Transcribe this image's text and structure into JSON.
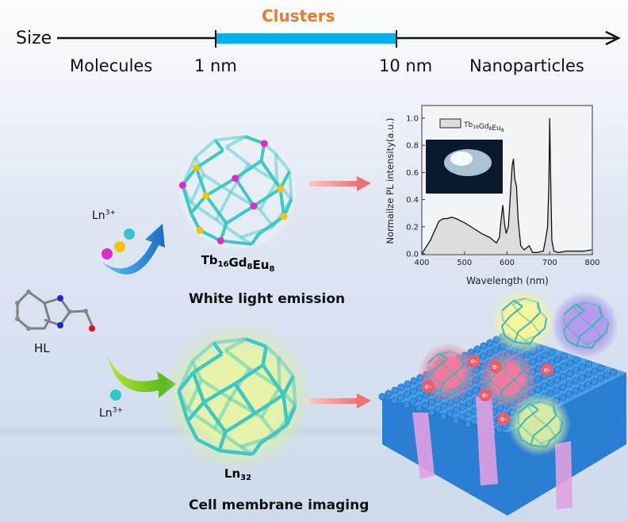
{
  "size_scale": {
    "axis_label": "Size",
    "highlight_label": "Clusters",
    "highlight_color": "#00b0ec",
    "categories": [
      "Molecules",
      "1 nm",
      "10 nm",
      "Nanoparticles"
    ]
  },
  "top_path": {
    "ion_label": "Ln3+",
    "ion_colors": [
      "#e02ad0",
      "#f5c400",
      "#30c8c8"
    ],
    "cluster_label": "Tb16Gd8Eu8",
    "application": "White light emission"
  },
  "ligand": {
    "label": "HL"
  },
  "bottom_path": {
    "ion_label": "Ln3+",
    "cluster_label": "Ln32",
    "application": "Cell membrane imaging",
    "electron_label": "e-"
  },
  "chart_data": {
    "type": "area",
    "xlabel": "Wavelength (nm)",
    "ylabel": "Normailze PL intensity(a.u.)",
    "xlim": [
      400,
      800
    ],
    "ylim": [
      0,
      1.05
    ],
    "xticks": [
      400,
      500,
      600,
      700,
      800
    ],
    "yticks": [
      "0.0",
      "0.2",
      "0.4",
      "0.6",
      "0.8",
      "1.0"
    ],
    "legend": "top-left",
    "series": [
      {
        "name": "Tb16Gd8Eu8",
        "x": [
          400,
          410,
          420,
          430,
          440,
          450,
          460,
          470,
          480,
          500,
          520,
          540,
          560,
          575,
          582,
          586,
          590,
          594,
          598,
          603,
          608,
          612,
          615,
          618,
          622,
          626,
          632,
          640,
          648,
          652,
          660,
          670,
          685,
          690,
          695,
          698,
          700,
          702,
          705,
          710,
          720,
          740,
          760,
          780,
          800
        ],
        "y": [
          0.0,
          0.05,
          0.1,
          0.17,
          0.24,
          0.26,
          0.26,
          0.27,
          0.26,
          0.23,
          0.19,
          0.15,
          0.12,
          0.08,
          0.12,
          0.25,
          0.36,
          0.22,
          0.15,
          0.2,
          0.45,
          0.65,
          0.7,
          0.55,
          0.5,
          0.25,
          0.06,
          0.03,
          0.05,
          0.06,
          0.01,
          0.01,
          0.02,
          0.1,
          0.2,
          0.5,
          1.0,
          0.6,
          0.1,
          0.02,
          0.01,
          0.02,
          0.02,
          0.02,
          0.03
        ]
      }
    ]
  },
  "colors": {
    "cluster": "#3cc8c4",
    "arrow_pink": "#f08a8a",
    "membrane": "#2a7fd4"
  }
}
